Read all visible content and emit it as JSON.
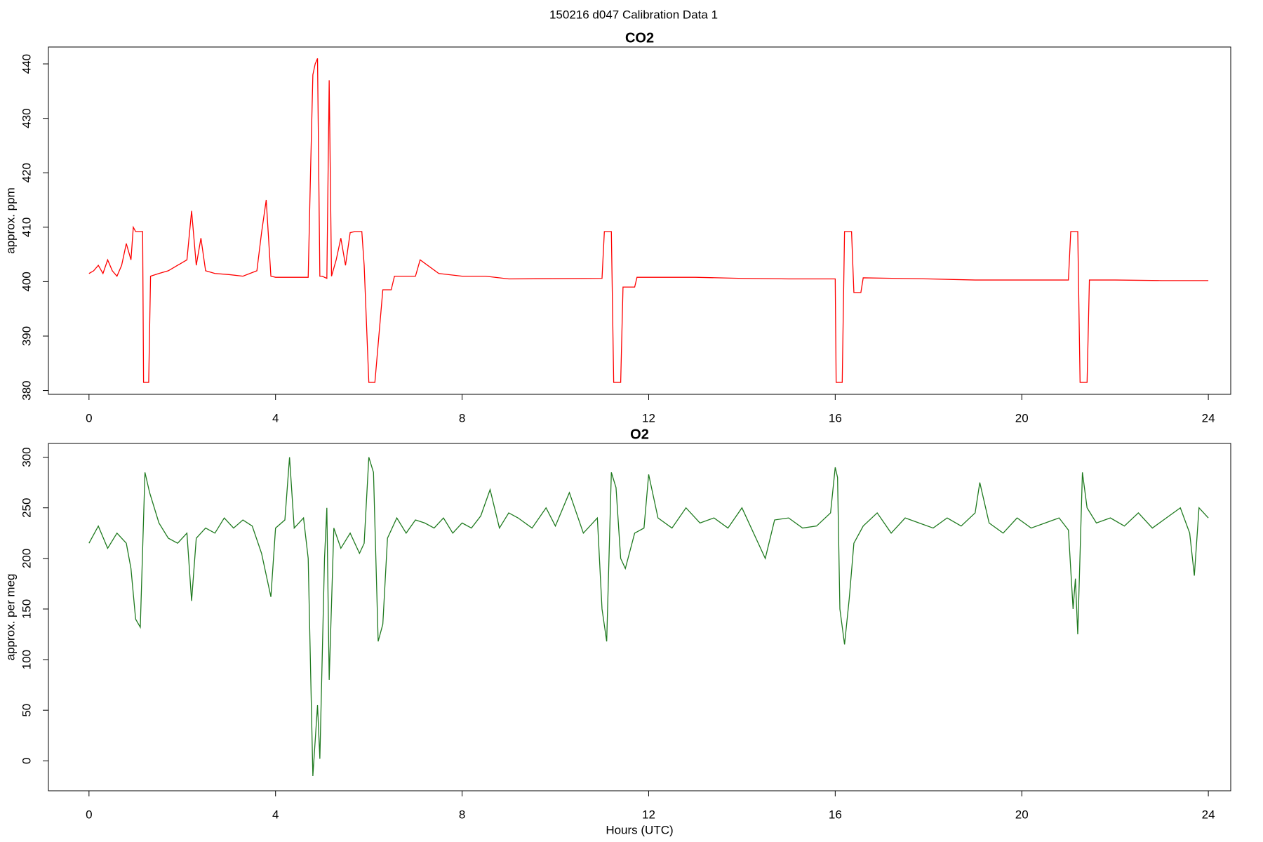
{
  "title": "150216   d047   Calibration Data 1",
  "chart_data": [
    {
      "type": "line",
      "title": "CO2",
      "y_label": "approx. ppm",
      "color": "#ff0000",
      "xlim": [
        -0.87,
        24.48
      ],
      "xticks": [
        0,
        4,
        8,
        12,
        16,
        20,
        24
      ],
      "ylim": [
        379.3,
        443.1
      ],
      "yticks": [
        380,
        390,
        400,
        410,
        420,
        430,
        440
      ],
      "x": [
        0,
        0.1,
        0.2,
        0.3,
        0.4,
        0.5,
        0.6,
        0.7,
        0.8,
        0.9,
        0.95,
        1.0,
        1.15,
        1.17,
        1.28,
        1.32,
        1.5,
        1.7,
        1.9,
        2.1,
        2.2,
        2.3,
        2.4,
        2.5,
        2.7,
        3.0,
        3.3,
        3.6,
        3.7,
        3.8,
        3.9,
        4.0,
        4.7,
        4.75,
        4.8,
        4.85,
        4.9,
        4.95,
        5.0,
        5.1,
        5.15,
        5.2,
        5.3,
        5.4,
        5.5,
        5.6,
        5.7,
        5.85,
        5.9,
        6.0,
        6.13,
        6.3,
        6.48,
        6.55,
        7.0,
        7.1,
        7.5,
        8.0,
        8.5,
        9.0,
        11.0,
        11.05,
        11.2,
        11.25,
        11.4,
        11.45,
        11.7,
        11.75,
        13,
        14,
        15,
        16.0,
        16.02,
        16.15,
        16.2,
        16.35,
        16.4,
        16.55,
        16.6,
        18,
        19,
        20,
        21.0,
        21.05,
        21.2,
        21.25,
        21.4,
        21.45,
        22,
        23,
        24
      ],
      "values": [
        401.5,
        402,
        403,
        401.5,
        404,
        402,
        401,
        403,
        407,
        404,
        410,
        409.2,
        409.2,
        381.5,
        381.5,
        401,
        401.5,
        402,
        403,
        404,
        413,
        403,
        408,
        402,
        401.5,
        401.3,
        401,
        402,
        409,
        415,
        401,
        400.8,
        400.8,
        420,
        438,
        440,
        441,
        401,
        401,
        400.6,
        437,
        401,
        404,
        408,
        403,
        409,
        409.2,
        409.2,
        403,
        381.5,
        381.5,
        398.5,
        398.5,
        401,
        401,
        404,
        401.5,
        401,
        401,
        400.5,
        400.6,
        409.2,
        409.2,
        381.5,
        381.5,
        399,
        399,
        400.8,
        400.8,
        400.6,
        400.5,
        400.5,
        381.5,
        381.5,
        409.2,
        409.2,
        398,
        398,
        400.7,
        400.5,
        400.3,
        400.3,
        400.3,
        409.2,
        409.2,
        381.5,
        381.5,
        400.3,
        400.3,
        400.2,
        400.2
      ]
    },
    {
      "type": "line",
      "title": "O2",
      "y_label": "approx. per meg",
      "x_label": "Hours (UTC)",
      "color": "#1f7a1f",
      "xlim": [
        -0.87,
        24.48
      ],
      "xticks": [
        0,
        4,
        8,
        12,
        16,
        20,
        24
      ],
      "ylim": [
        -29.6,
        313.6
      ],
      "yticks": [
        0,
        50,
        100,
        150,
        200,
        250,
        300
      ],
      "x": [
        0,
        0.2,
        0.4,
        0.6,
        0.8,
        0.9,
        1.0,
        1.1,
        1.2,
        1.3,
        1.5,
        1.7,
        1.9,
        2.1,
        2.2,
        2.3,
        2.5,
        2.7,
        2.9,
        3.1,
        3.3,
        3.5,
        3.7,
        3.9,
        4.0,
        4.2,
        4.3,
        4.4,
        4.6,
        4.7,
        4.8,
        4.9,
        4.95,
        5.05,
        5.1,
        5.15,
        5.25,
        5.4,
        5.6,
        5.8,
        5.9,
        6.0,
        6.1,
        6.2,
        6.3,
        6.4,
        6.6,
        6.8,
        7.0,
        7.2,
        7.4,
        7.6,
        7.8,
        8.0,
        8.2,
        8.4,
        8.6,
        8.8,
        9.0,
        9.2,
        9.5,
        9.8,
        10.0,
        10.3,
        10.6,
        10.9,
        11.0,
        11.1,
        11.2,
        11.3,
        11.4,
        11.5,
        11.7,
        11.9,
        12.0,
        12.2,
        12.5,
        12.8,
        13.1,
        13.4,
        13.7,
        14.0,
        14.3,
        14.5,
        14.7,
        15.0,
        15.3,
        15.6,
        15.9,
        16.0,
        16.05,
        16.1,
        16.2,
        16.3,
        16.4,
        16.6,
        16.9,
        17.2,
        17.5,
        17.8,
        18.1,
        18.4,
        18.7,
        19.0,
        19.1,
        19.3,
        19.6,
        19.9,
        20.2,
        20.5,
        20.8,
        21.0,
        21.1,
        21.15,
        21.2,
        21.3,
        21.4,
        21.6,
        21.9,
        22.2,
        22.5,
        22.8,
        23.1,
        23.4,
        23.6,
        23.7,
        23.8,
        24.0
      ],
      "values": [
        215,
        232,
        210,
        225,
        215,
        190,
        140,
        132,
        285,
        265,
        235,
        220,
        215,
        225,
        158,
        220,
        230,
        225,
        240,
        230,
        238,
        232,
        205,
        162,
        230,
        238,
        300,
        230,
        240,
        200,
        -15,
        55,
        2,
        200,
        250,
        80,
        230,
        210,
        225,
        205,
        215,
        300,
        285,
        118,
        135,
        220,
        240,
        225,
        238,
        235,
        230,
        240,
        225,
        235,
        230,
        242,
        268,
        230,
        245,
        240,
        230,
        250,
        232,
        265,
        225,
        240,
        150,
        118,
        285,
        270,
        200,
        190,
        225,
        230,
        283,
        240,
        230,
        250,
        235,
        240,
        230,
        250,
        220,
        200,
        238,
        240,
        230,
        232,
        245,
        290,
        280,
        150,
        115,
        160,
        215,
        232,
        245,
        225,
        240,
        235,
        230,
        240,
        232,
        245,
        275,
        235,
        225,
        240,
        230,
        235,
        240,
        228,
        150,
        180,
        125,
        285,
        250,
        235,
        240,
        232,
        245,
        230,
        240,
        250,
        225,
        183,
        250,
        240
      ]
    }
  ]
}
